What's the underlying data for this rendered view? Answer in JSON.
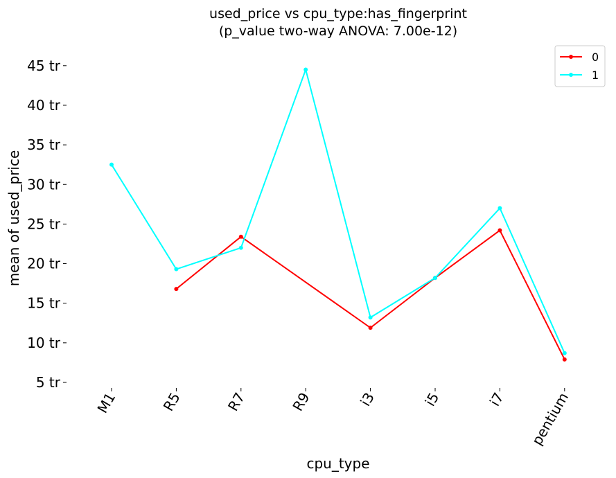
{
  "chart_data": {
    "type": "line",
    "title_line1": "used_price vs cpu_type:has_fingerprint",
    "title_line2": "(p_value two-way ANOVA: 7.00e-12)",
    "xlabel": "cpu_type",
    "ylabel": "mean of used_price",
    "categories": [
      "M1",
      "R5",
      "R7",
      "R9",
      "i3",
      "i5",
      "i7",
      "pentium"
    ],
    "ylim": [
      4.5,
      47
    ],
    "yticks": [
      5,
      10,
      15,
      20,
      25,
      30,
      35,
      40,
      45
    ],
    "ytick_labels": [
      "5 tr",
      "10 tr",
      "15 tr",
      "20 tr",
      "25 tr",
      "30 tr",
      "35 tr",
      "40 tr",
      "45 tr"
    ],
    "grid": false,
    "legend_placement": "top-right",
    "series": [
      {
        "name": "0",
        "color": "#ff0000",
        "values": [
          null,
          16.8,
          23.4,
          null,
          11.9,
          18.2,
          24.2,
          7.9
        ]
      },
      {
        "name": "1",
        "color": "#00ffff",
        "values": [
          32.5,
          19.3,
          22.0,
          44.5,
          13.2,
          18.2,
          27.0,
          8.7
        ]
      }
    ]
  }
}
